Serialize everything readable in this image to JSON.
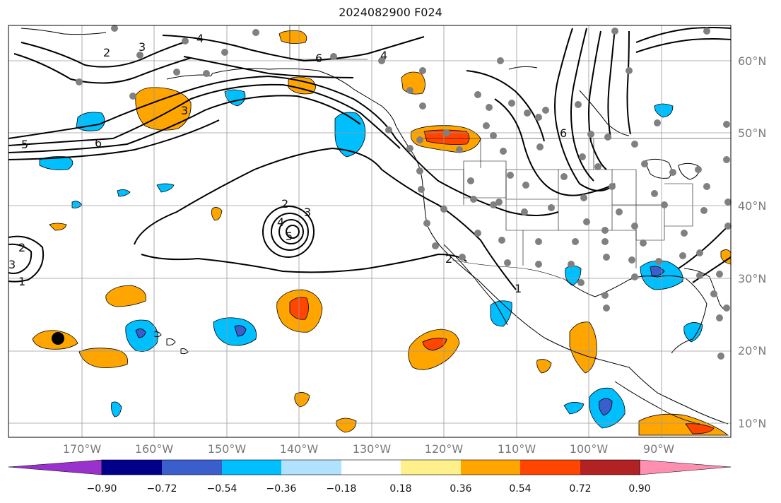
{
  "title": "2024082900 F024",
  "map": {
    "lat_labels": [
      "60°N",
      "50°N",
      "40°N",
      "30°N",
      "20°N",
      "10°N"
    ],
    "lon_labels": [
      "170°W",
      "160°W",
      "150°W",
      "140°W",
      "130°W",
      "120°W",
      "110°W",
      "100°W",
      "90°W"
    ],
    "contour_labels": [
      "1",
      "2",
      "3",
      "4",
      "5",
      "6"
    ]
  },
  "colorbar": {
    "ticks": [
      "−0.90",
      "−0.72",
      "−0.54",
      "−0.36",
      "−0.18",
      "0.18",
      "0.36",
      "0.54",
      "0.72",
      "0.90"
    ],
    "colors": [
      "#9932cc",
      "#00008b",
      "#3a5fcd",
      "#00bfff",
      "#b0e2ff",
      "#ffffff",
      "#fff08c",
      "#ffa500",
      "#ff4500",
      "#b22222",
      "#ff8fb1"
    ]
  }
}
